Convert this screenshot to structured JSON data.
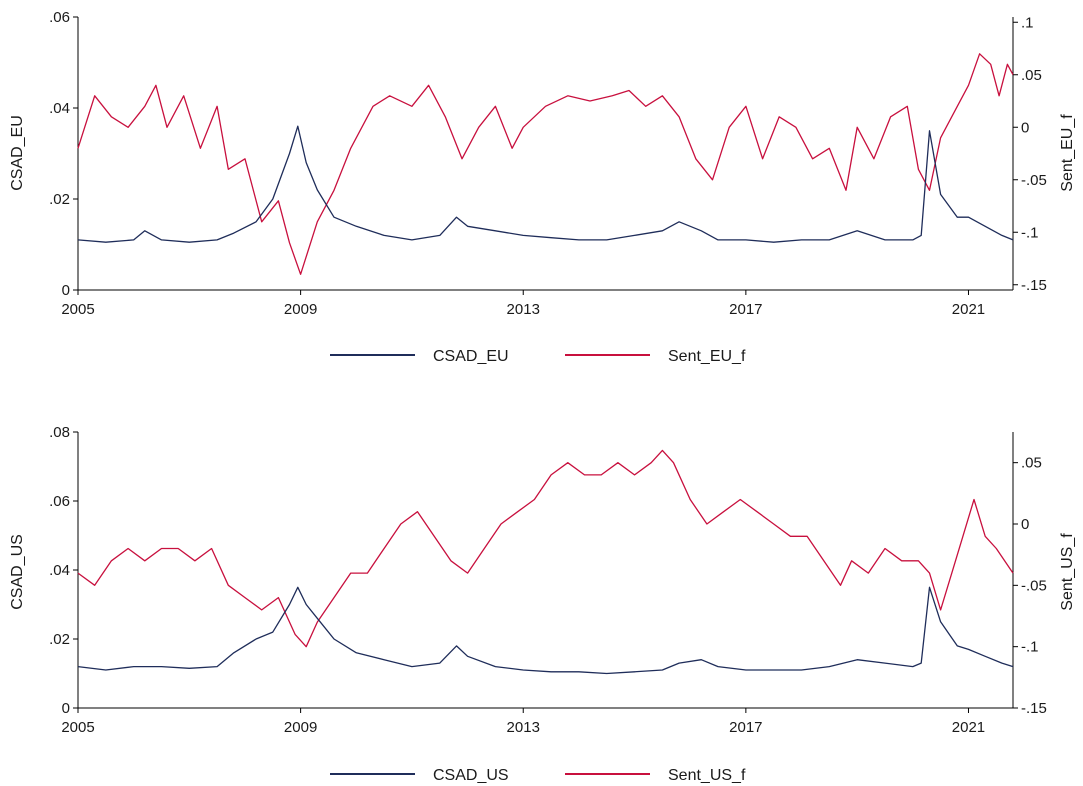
{
  "chart_data": [
    {
      "type": "line",
      "x_range": [
        2005.0,
        2021.8
      ],
      "x_ticks": [
        "2005",
        "2009",
        "2013",
        "2017",
        "2021"
      ],
      "ylabel_left": "CSAD_EU",
      "ylabel_right": "Sent_EU_f",
      "ylim_left": [
        0,
        0.06
      ],
      "ylim_right": [
        -0.155,
        0.105
      ],
      "y_ticks_left": [
        0,
        0.02,
        0.04,
        0.06
      ],
      "y_tick_labels_left": [
        "0",
        ".02",
        ".04",
        ".06"
      ],
      "y_ticks_right": [
        -0.15,
        -0.1,
        -0.05,
        0,
        0.05,
        0.1
      ],
      "y_tick_labels_right": [
        "-.15",
        "-.1",
        "-.05",
        "0",
        ".05",
        ".1"
      ],
      "grid": false,
      "legend_position": "bottom",
      "series": [
        {
          "name": "CSAD_EU",
          "axis": "left",
          "color": "#1f2d5a",
          "x": [
            2005.0,
            2005.5,
            2006.0,
            2006.2,
            2006.5,
            2007.0,
            2007.5,
            2007.8,
            2008.2,
            2008.5,
            2008.8,
            2008.95,
            2009.1,
            2009.3,
            2009.6,
            2010.0,
            2010.5,
            2011.0,
            2011.5,
            2011.8,
            2012.0,
            2012.5,
            2013.0,
            2013.5,
            2014.0,
            2014.5,
            2015.0,
            2015.5,
            2015.8,
            2016.2,
            2016.5,
            2017.0,
            2017.5,
            2018.0,
            2018.5,
            2019.0,
            2019.5,
            2020.0,
            2020.15,
            2020.3,
            2020.5,
            2020.8,
            2021.0,
            2021.3,
            2021.6,
            2021.8
          ],
          "y": [
            0.011,
            0.0105,
            0.011,
            0.013,
            0.011,
            0.0105,
            0.011,
            0.0125,
            0.015,
            0.02,
            0.03,
            0.036,
            0.028,
            0.022,
            0.016,
            0.014,
            0.012,
            0.011,
            0.012,
            0.016,
            0.014,
            0.013,
            0.012,
            0.0115,
            0.011,
            0.011,
            0.012,
            0.013,
            0.015,
            0.013,
            0.011,
            0.011,
            0.0105,
            0.011,
            0.011,
            0.013,
            0.011,
            0.011,
            0.012,
            0.035,
            0.021,
            0.016,
            0.016,
            0.014,
            0.012,
            0.011
          ]
        },
        {
          "name": "Sent_EU_f",
          "axis": "right",
          "color": "#c8103e",
          "x": [
            2005.0,
            2005.3,
            2005.6,
            2005.9,
            2006.2,
            2006.4,
            2006.6,
            2006.9,
            2007.2,
            2007.5,
            2007.7,
            2008.0,
            2008.3,
            2008.6,
            2008.8,
            2009.0,
            2009.3,
            2009.6,
            2009.9,
            2010.3,
            2010.6,
            2011.0,
            2011.3,
            2011.6,
            2011.9,
            2012.2,
            2012.5,
            2012.8,
            2013.0,
            2013.4,
            2013.8,
            2014.2,
            2014.6,
            2014.9,
            2015.2,
            2015.5,
            2015.8,
            2016.1,
            2016.4,
            2016.7,
            2017.0,
            2017.3,
            2017.6,
            2017.9,
            2018.2,
            2018.5,
            2018.8,
            2019.0,
            2019.3,
            2019.6,
            2019.9,
            2020.1,
            2020.3,
            2020.5,
            2020.8,
            2021.0,
            2021.2,
            2021.4,
            2021.55,
            2021.7,
            2021.8
          ],
          "y": [
            -0.02,
            0.03,
            0.01,
            0.0,
            0.02,
            0.04,
            0.0,
            0.03,
            -0.02,
            0.02,
            -0.04,
            -0.03,
            -0.09,
            -0.07,
            -0.11,
            -0.14,
            -0.09,
            -0.06,
            -0.02,
            0.02,
            0.03,
            0.02,
            0.04,
            0.01,
            -0.03,
            0.0,
            0.02,
            -0.02,
            0.0,
            0.02,
            0.03,
            0.025,
            0.03,
            0.035,
            0.02,
            0.03,
            0.01,
            -0.03,
            -0.05,
            0.0,
            0.02,
            -0.03,
            0.01,
            0.0,
            -0.03,
            -0.02,
            -0.06,
            0.0,
            -0.03,
            0.01,
            0.02,
            -0.04,
            -0.06,
            -0.01,
            0.02,
            0.04,
            0.07,
            0.06,
            0.03,
            0.06,
            0.05
          ]
        }
      ]
    },
    {
      "type": "line",
      "x_range": [
        2005.0,
        2021.8
      ],
      "x_ticks": [
        "2005",
        "2009",
        "2013",
        "2017",
        "2021"
      ],
      "ylabel_left": "CSAD_US",
      "ylabel_right": "Sent_US_f",
      "ylim_left": [
        0,
        0.08
      ],
      "ylim_right": [
        -0.15,
        0.075
      ],
      "y_ticks_left": [
        0,
        0.02,
        0.04,
        0.06,
        0.08
      ],
      "y_tick_labels_left": [
        "0",
        ".02",
        ".04",
        ".06",
        ".08"
      ],
      "y_ticks_right": [
        -0.15,
        -0.1,
        -0.05,
        0,
        0.05
      ],
      "y_tick_labels_right": [
        "-.15",
        "-.1",
        "-.05",
        "0",
        ".05"
      ],
      "grid": false,
      "legend_position": "bottom",
      "series": [
        {
          "name": "CSAD_US",
          "axis": "left",
          "color": "#1f2d5a",
          "x": [
            2005.0,
            2005.5,
            2006.0,
            2006.5,
            2007.0,
            2007.5,
            2007.8,
            2008.2,
            2008.5,
            2008.8,
            2008.95,
            2009.1,
            2009.3,
            2009.6,
            2010.0,
            2010.5,
            2011.0,
            2011.5,
            2011.8,
            2012.0,
            2012.5,
            2013.0,
            2013.5,
            2014.0,
            2014.5,
            2015.0,
            2015.5,
            2015.8,
            2016.2,
            2016.5,
            2017.0,
            2017.5,
            2018.0,
            2018.5,
            2019.0,
            2019.5,
            2020.0,
            2020.15,
            2020.3,
            2020.5,
            2020.8,
            2021.0,
            2021.3,
            2021.6,
            2021.8
          ],
          "y": [
            0.012,
            0.011,
            0.012,
            0.012,
            0.0115,
            0.012,
            0.016,
            0.02,
            0.022,
            0.03,
            0.035,
            0.03,
            0.026,
            0.02,
            0.016,
            0.014,
            0.012,
            0.013,
            0.018,
            0.015,
            0.012,
            0.011,
            0.0105,
            0.0105,
            0.01,
            0.0105,
            0.011,
            0.013,
            0.014,
            0.012,
            0.011,
            0.011,
            0.011,
            0.012,
            0.014,
            0.013,
            0.012,
            0.013,
            0.035,
            0.025,
            0.018,
            0.017,
            0.015,
            0.013,
            0.012
          ]
        },
        {
          "name": "Sent_US_f",
          "axis": "right",
          "color": "#c8103e",
          "x": [
            2005.0,
            2005.3,
            2005.6,
            2005.9,
            2006.2,
            2006.5,
            2006.8,
            2007.1,
            2007.4,
            2007.7,
            2008.0,
            2008.3,
            2008.6,
            2008.9,
            2009.1,
            2009.3,
            2009.6,
            2009.9,
            2010.2,
            2010.5,
            2010.8,
            2011.1,
            2011.4,
            2011.7,
            2012.0,
            2012.3,
            2012.6,
            2012.9,
            2013.2,
            2013.5,
            2013.8,
            2014.1,
            2014.4,
            2014.7,
            2015.0,
            2015.3,
            2015.5,
            2015.7,
            2016.0,
            2016.3,
            2016.6,
            2016.9,
            2017.2,
            2017.5,
            2017.8,
            2018.1,
            2018.4,
            2018.7,
            2018.9,
            2019.2,
            2019.5,
            2019.8,
            2020.1,
            2020.3,
            2020.5,
            2020.7,
            2020.9,
            2021.1,
            2021.3,
            2021.5,
            2021.8
          ],
          "y": [
            -0.04,
            -0.05,
            -0.03,
            -0.02,
            -0.03,
            -0.02,
            -0.02,
            -0.03,
            -0.02,
            -0.05,
            -0.06,
            -0.07,
            -0.06,
            -0.09,
            -0.1,
            -0.08,
            -0.06,
            -0.04,
            -0.04,
            -0.02,
            0.0,
            0.01,
            -0.01,
            -0.03,
            -0.04,
            -0.02,
            0.0,
            0.01,
            0.02,
            0.04,
            0.05,
            0.04,
            0.04,
            0.05,
            0.04,
            0.05,
            0.06,
            0.05,
            0.02,
            0.0,
            0.01,
            0.02,
            0.01,
            0.0,
            -0.01,
            -0.01,
            -0.03,
            -0.05,
            -0.03,
            -0.04,
            -0.02,
            -0.03,
            -0.03,
            -0.04,
            -0.07,
            -0.04,
            -0.01,
            0.02,
            -0.01,
            -0.02,
            -0.04
          ]
        }
      ]
    }
  ]
}
